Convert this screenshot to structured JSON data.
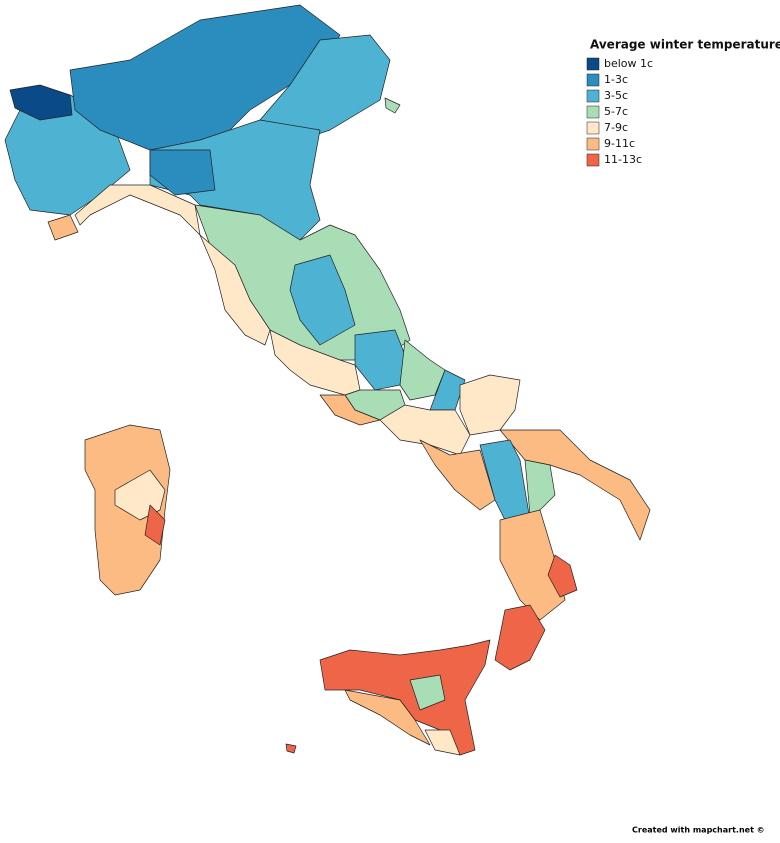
{
  "legend": {
    "title": "Average winter temperature",
    "items": [
      {
        "label": "below 1c",
        "color": "#0b4a89"
      },
      {
        "label": "1-3c",
        "color": "#2b8cbe"
      },
      {
        "label": "3-5c",
        "color": "#4eb3d3"
      },
      {
        "label": "5-7c",
        "color": "#a8ddb5"
      },
      {
        "label": "7-9c",
        "color": "#fee8c8"
      },
      {
        "label": "9-11c",
        "color": "#fdbb84"
      },
      {
        "label": "11-13c",
        "color": "#ef6548"
      }
    ]
  },
  "credit": "Created with mapchart.net ©"
}
